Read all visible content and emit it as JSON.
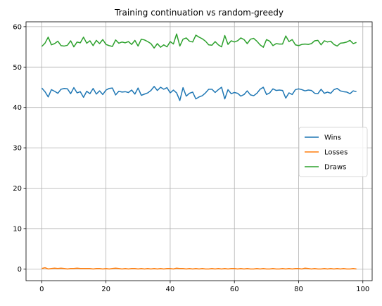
{
  "chart_data": {
    "type": "line",
    "title": "Training continuation vs random-greedy",
    "xlabel": "",
    "ylabel": "",
    "xlim": [
      -4.9,
      102.9
    ],
    "ylim": [
      -2.9,
      61.2
    ],
    "xticks": [
      0,
      20,
      40,
      60,
      80,
      100
    ],
    "yticks": [
      0,
      10,
      20,
      30,
      40,
      50,
      60
    ],
    "grid": true,
    "legend_position": "center-right",
    "x": [
      0,
      1,
      2,
      3,
      4,
      5,
      6,
      7,
      8,
      9,
      10,
      11,
      12,
      13,
      14,
      15,
      16,
      17,
      18,
      19,
      20,
      21,
      22,
      23,
      24,
      25,
      26,
      27,
      28,
      29,
      30,
      31,
      32,
      33,
      34,
      35,
      36,
      37,
      38,
      39,
      40,
      41,
      42,
      43,
      44,
      45,
      46,
      47,
      48,
      49,
      50,
      51,
      52,
      53,
      54,
      55,
      56,
      57,
      58,
      59,
      60,
      61,
      62,
      63,
      64,
      65,
      66,
      67,
      68,
      69,
      70,
      71,
      72,
      73,
      74,
      75,
      76,
      77,
      78,
      79,
      80,
      81,
      82,
      83,
      84,
      85,
      86,
      87,
      88,
      89,
      90,
      91,
      92,
      93,
      94,
      95,
      96,
      97,
      98
    ],
    "series": [
      {
        "name": "Wins",
        "color": "#1f77b4",
        "values": [
          44.8,
          43.9,
          42.6,
          44.4,
          44.0,
          43.5,
          44.5,
          44.7,
          44.6,
          43.4,
          44.9,
          43.6,
          43.9,
          42.5,
          44.0,
          43.4,
          44.7,
          43.3,
          44.1,
          43.2,
          44.3,
          44.7,
          44.8,
          43.1,
          44.0,
          43.8,
          43.9,
          43.7,
          44.3,
          43.3,
          44.8,
          43.0,
          43.3,
          43.6,
          44.2,
          45.2,
          44.2,
          45.0,
          44.5,
          44.9,
          43.6,
          44.3,
          43.6,
          41.7,
          44.9,
          42.8,
          43.5,
          43.8,
          42.1,
          42.6,
          42.9,
          43.6,
          44.5,
          44.5,
          43.7,
          44.4,
          45.0,
          42.1,
          44.4,
          43.4,
          43.7,
          43.5,
          42.8,
          43.2,
          44.1,
          43.1,
          42.9,
          43.5,
          44.5,
          45.0,
          43.2,
          43.6,
          44.6,
          44.2,
          44.3,
          44.2,
          42.3,
          43.6,
          43.2,
          44.4,
          44.6,
          44.4,
          44.1,
          44.3,
          44.2,
          43.5,
          43.4,
          44.5,
          43.5,
          43.8,
          43.5,
          44.4,
          44.7,
          44.1,
          43.9,
          43.8,
          43.4,
          44.1,
          43.9
        ]
      },
      {
        "name": "Losses",
        "color": "#ff7f0e",
        "values": [
          0.1,
          0.3,
          0.0,
          0.1,
          0.2,
          0.1,
          0.2,
          0.1,
          0.0,
          0.1,
          0.1,
          0.2,
          0.1,
          0.1,
          0.1,
          0.1,
          0.0,
          0.1,
          0.1,
          0.0,
          0.1,
          0.0,
          0.1,
          0.2,
          0.1,
          0.0,
          0.1,
          0.0,
          0.1,
          0.1,
          0.0,
          0.1,
          0.0,
          0.1,
          0.0,
          0.1,
          0.0,
          0.1,
          0.0,
          0.1,
          0.1,
          0.0,
          0.2,
          0.1,
          0.1,
          0.0,
          0.1,
          0.0,
          0.1,
          0.0,
          0.1,
          0.0,
          0.0,
          0.1,
          0.0,
          0.1,
          0.0,
          0.1,
          0.0,
          0.1,
          0.1,
          0.0,
          0.1,
          0.0,
          0.1,
          0.0,
          0.0,
          0.1,
          0.0,
          0.1,
          0.0,
          0.0,
          0.1,
          0.0,
          0.0,
          0.1,
          0.0,
          0.1,
          0.0,
          0.1,
          0.1,
          0.0,
          0.2,
          0.1,
          0.0,
          0.1,
          0.0,
          0.0,
          0.1,
          0.0,
          0.1,
          0.0,
          0.1,
          0.0,
          0.1,
          0.0,
          0.0,
          0.1,
          0.0
        ]
      },
      {
        "name": "Draws",
        "color": "#2ca02c",
        "values": [
          55.1,
          55.9,
          57.4,
          55.5,
          55.8,
          56.4,
          55.3,
          55.2,
          55.4,
          56.5,
          55.0,
          56.2,
          56.0,
          57.4,
          55.9,
          56.5,
          55.3,
          56.6,
          55.8,
          56.8,
          55.6,
          55.3,
          55.1,
          56.7,
          55.9,
          56.2,
          56.0,
          56.3,
          55.6,
          56.6,
          55.2,
          56.9,
          56.7,
          56.3,
          55.8,
          54.7,
          55.8,
          54.9,
          55.5,
          55.0,
          56.3,
          55.7,
          58.2,
          55.2,
          56.9,
          57.2,
          56.4,
          56.2,
          57.9,
          57.4,
          57.0,
          56.4,
          55.5,
          55.4,
          56.3,
          55.5,
          55.0,
          57.8,
          55.6,
          56.5,
          56.2,
          56.5,
          57.2,
          56.8,
          55.8,
          56.9,
          57.1,
          56.4,
          55.5,
          54.9,
          56.8,
          56.4,
          55.3,
          55.8,
          55.7,
          55.7,
          57.7,
          56.3,
          56.8,
          55.5,
          55.3,
          55.6,
          55.7,
          55.6,
          55.8,
          56.5,
          56.6,
          55.5,
          56.5,
          56.2,
          56.4,
          55.6,
          55.2,
          55.9,
          56.0,
          56.2,
          56.6,
          55.8,
          56.1
        ]
      }
    ]
  }
}
